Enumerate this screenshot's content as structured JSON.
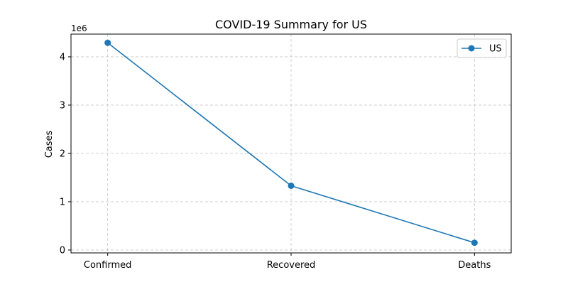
{
  "chart_data": {
    "type": "line",
    "title": "COVID-19 Summary for US",
    "xlabel": "",
    "ylabel": "Cases",
    "categories": [
      "Confirmed",
      "Recovered",
      "Deaths"
    ],
    "series": [
      {
        "name": "US",
        "values": [
          4290000,
          1330000,
          150000
        ],
        "color": "#1f77b4",
        "marker": "circle"
      }
    ],
    "ylim": [
      -60000,
      4470000
    ],
    "yticks": [
      0,
      1000000,
      2000000,
      3000000,
      4000000
    ],
    "ytick_labels": [
      "0",
      "1",
      "2",
      "3",
      "4"
    ],
    "y_offset_label": "1e6",
    "grid": true,
    "legend_position": "top-right"
  }
}
